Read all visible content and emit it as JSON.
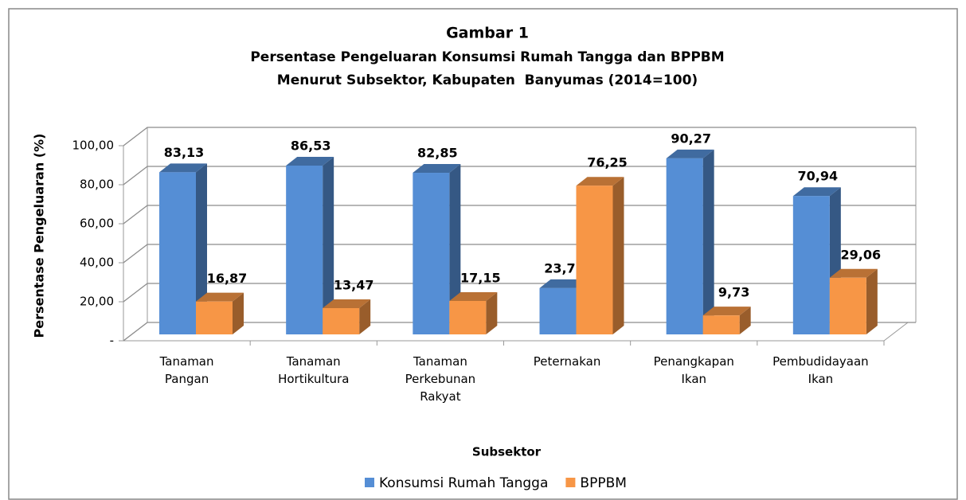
{
  "chart_data": {
    "type": "bar3d",
    "title": "Gambar 1",
    "subtitle": [
      "Persentase Pengeluaran Konsumsi Rumah Tangga dan BPPBM",
      "Menurut Subsektor, Kabupaten  Banyumas (2014=100)"
    ],
    "x_label": "Subsektor",
    "y_label": "Persentase Pengeluaran (%)",
    "categories": [
      "Tanaman Pangan",
      "Tanaman Hortikultura",
      "Tanaman Perkebunan Rakyat",
      "Peternakan",
      "Penangkapan Ikan",
      "Pembudidayaan Ikan"
    ],
    "series": [
      {
        "name": "Konsumsi Rumah Tangga",
        "color": "#558ed5",
        "values": [
          83.13,
          86.53,
          82.85,
          23.75,
          90.27,
          70.94
        ],
        "value_labels": [
          "83,13",
          "86,53",
          "82,85",
          "23,75",
          "90,27",
          "70,94"
        ]
      },
      {
        "name": "BPPBM",
        "color": "#f79646",
        "values": [
          16.87,
          13.47,
          17.15,
          76.25,
          9.73,
          29.06
        ],
        "value_labels": [
          "16,87",
          "13,47",
          "17,15",
          "76,25",
          "9,73",
          "29,06"
        ]
      }
    ],
    "ylim": [
      0,
      100
    ],
    "yticks": [
      {
        "value": 0,
        "label": "-"
      },
      {
        "value": 20,
        "label": "20,00"
      },
      {
        "value": 40,
        "label": "40,00"
      },
      {
        "value": 60,
        "label": "60,00"
      },
      {
        "value": 80,
        "label": "80,00"
      },
      {
        "value": 100,
        "label": "100,00"
      }
    ],
    "grid": true,
    "legend": "bottom"
  }
}
